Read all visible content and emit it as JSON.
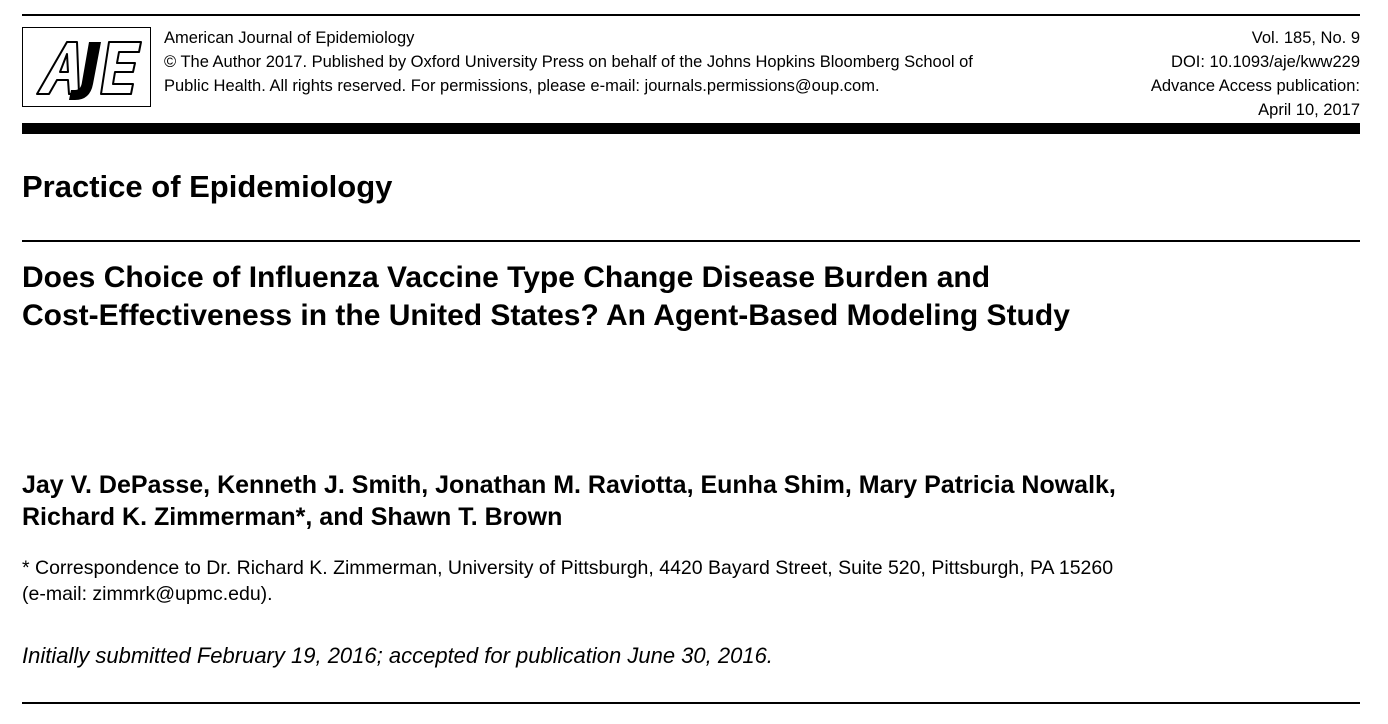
{
  "journal_header": {
    "logo_text": "AJE",
    "journal_name": "American Journal of Epidemiology",
    "copyright_line1": "© The Author 2017. Published by Oxford University Press on behalf of the Johns Hopkins Bloomberg School of",
    "copyright_line2": "Public Health. All rights reserved. For permissions, please e-mail: journals.permissions@oup.com.",
    "volume": "Vol. 185, No. 9",
    "doi": "DOI: 10.1093/aje/kww229",
    "advance_access": "Advance Access publication:",
    "publication_date": "April 10, 2017"
  },
  "section_title": "Practice of Epidemiology",
  "article_title": {
    "line1": "Does Choice of Influenza Vaccine Type Change Disease Burden and",
    "line2": "Cost-Effectiveness in the United States? An Agent-Based Modeling Study"
  },
  "authors": {
    "line1": "Jay V. DePasse, Kenneth J. Smith, Jonathan M. Raviotta, Eunha Shim, Mary Patricia Nowalk,",
    "line2": "Richard K. Zimmerman*, and Shawn T. Brown"
  },
  "correspondence": {
    "line1": "* Correspondence to Dr. Richard K. Zimmerman, University of Pittsburgh, 4420 Bayard Street, Suite 520, Pittsburgh, PA 15260",
    "line2": "(e-mail: zimmrk@upmc.edu)."
  },
  "submission_dates": "Initially submitted February 19, 2016; accepted for publication June 30, 2016."
}
